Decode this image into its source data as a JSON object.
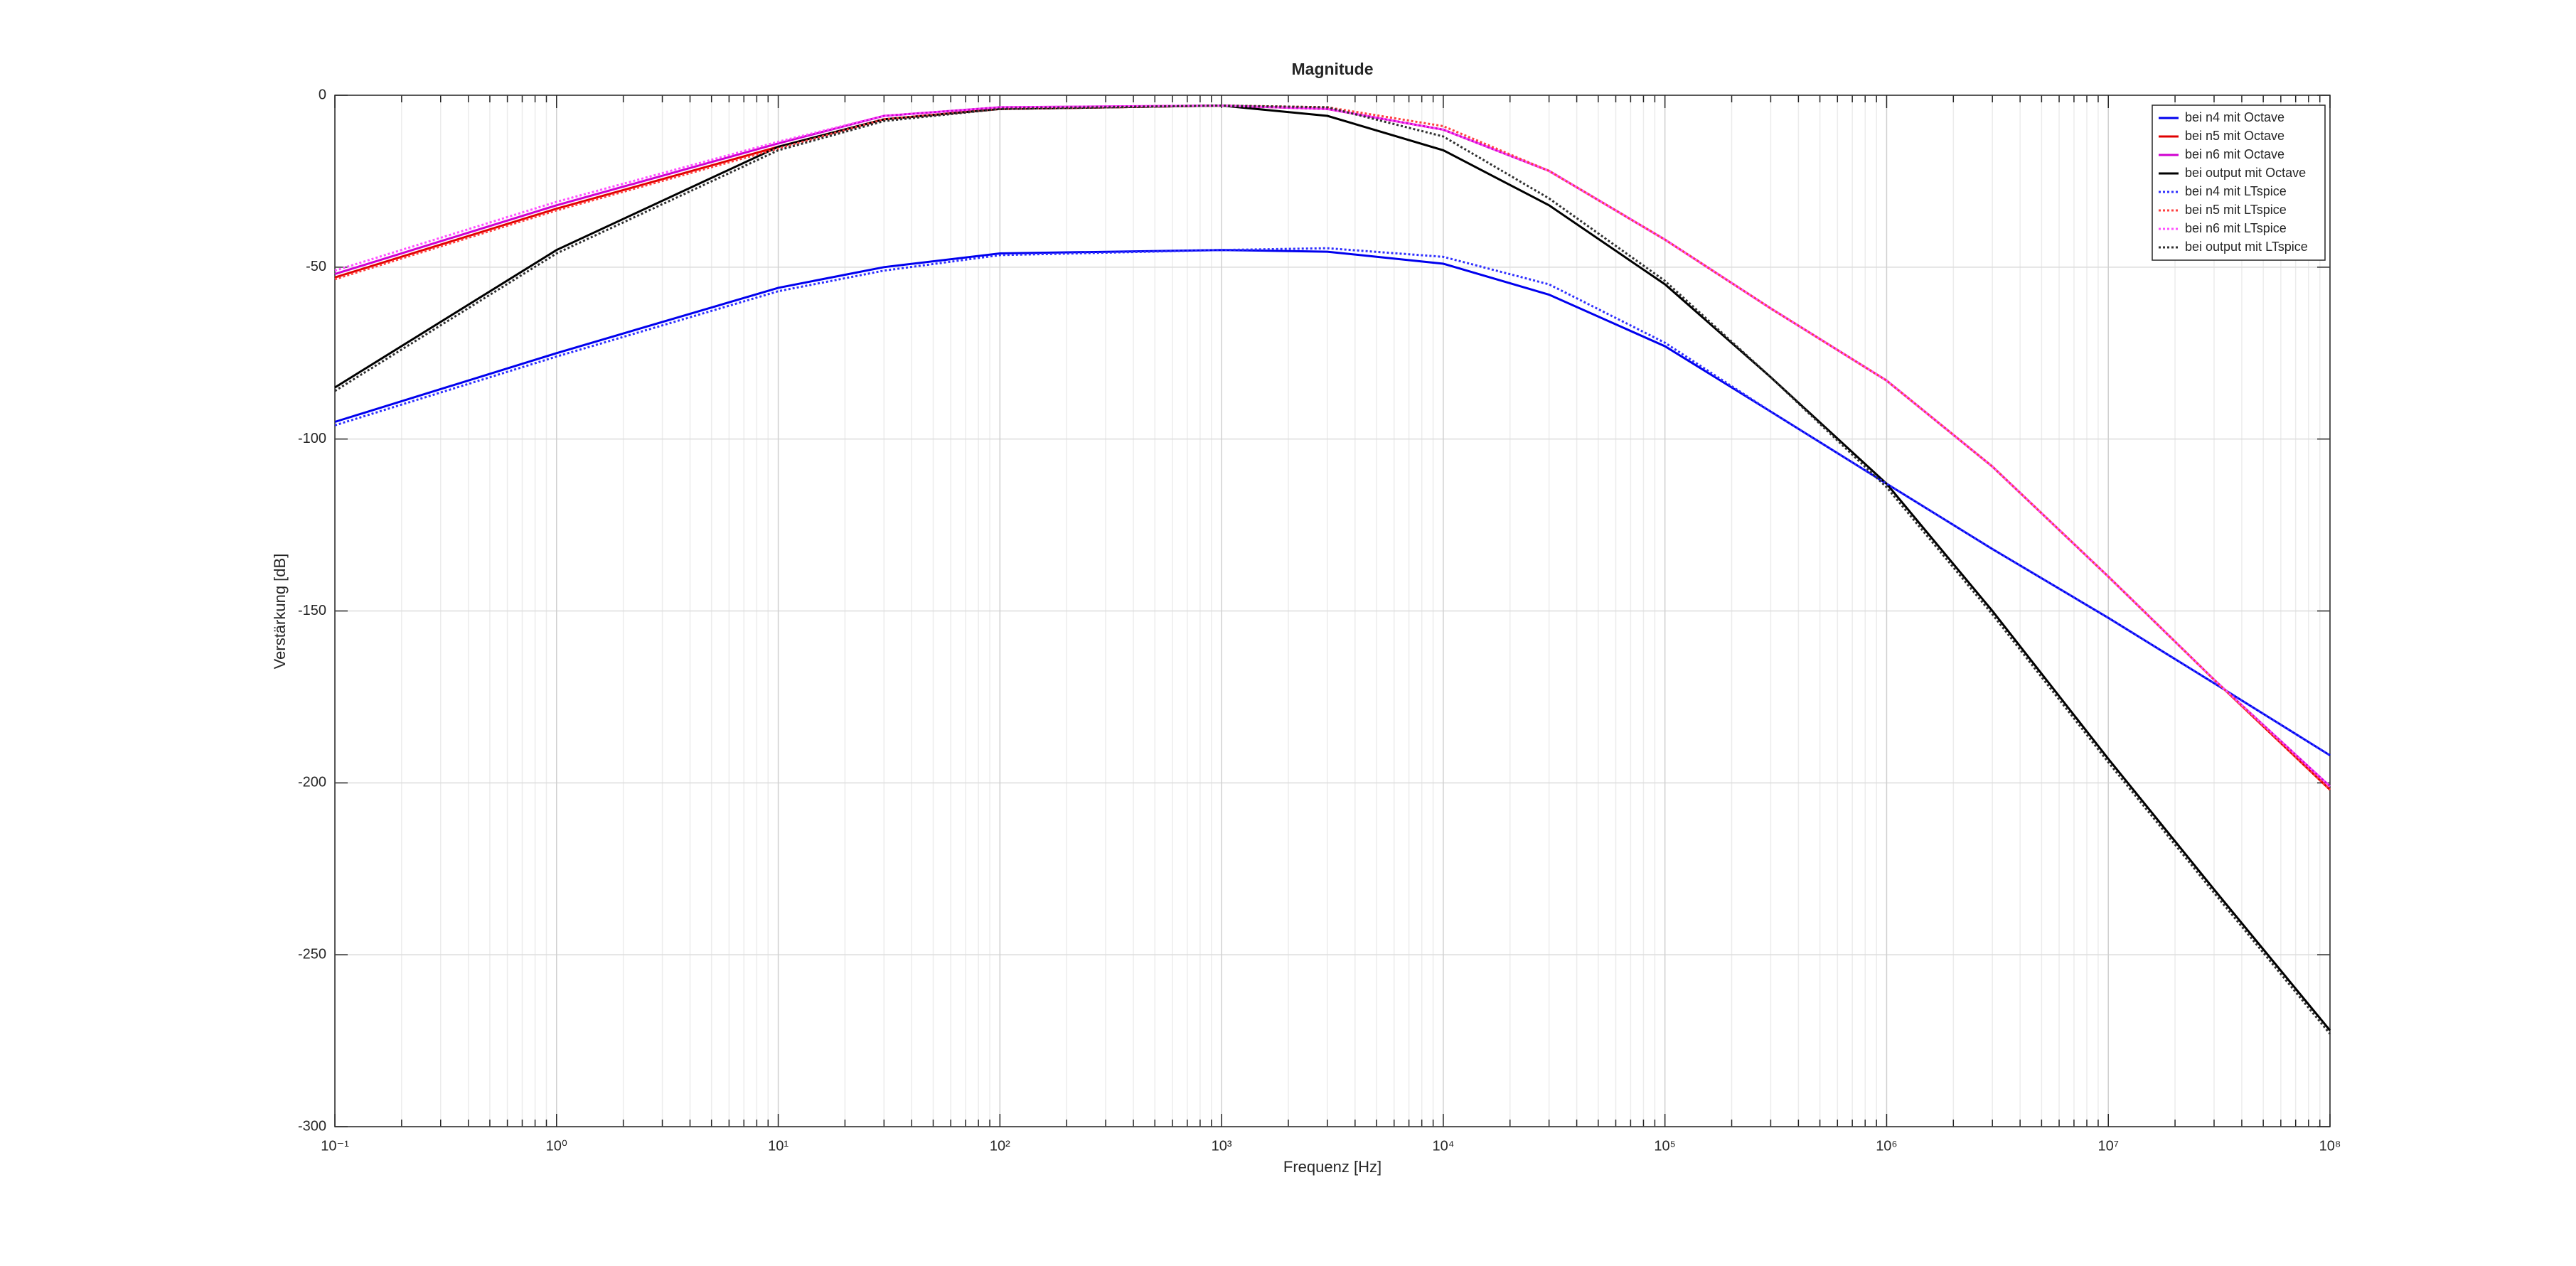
{
  "chart_data": {
    "type": "line",
    "title": "Magnitude",
    "x_label": "Frequenz [Hz]",
    "y_label": "Verstärkung [dB]",
    "xscale": "log",
    "grid": true,
    "minor_grid": true,
    "legend": "northeast",
    "xlim": [
      0.1,
      100000000
    ],
    "ylim": [
      -300,
      0
    ],
    "xticks": [
      {
        "value": 0.1,
        "label": "10⁻¹"
      },
      {
        "value": 1,
        "label": "10⁰"
      },
      {
        "value": 10,
        "label": "10¹"
      },
      {
        "value": 100,
        "label": "10²"
      },
      {
        "value": 1000,
        "label": "10³"
      },
      {
        "value": 10000,
        "label": "10⁴"
      },
      {
        "value": 100000,
        "label": "10⁵"
      },
      {
        "value": 1000000,
        "label": "10⁶"
      },
      {
        "value": 10000000,
        "label": "10⁷"
      },
      {
        "value": 100000000,
        "label": "10⁸"
      }
    ],
    "yticks": [
      -300,
      -250,
      -200,
      -150,
      -100,
      -50,
      0
    ],
    "x": [
      0.1,
      1,
      10,
      30,
      100,
      1000,
      3000,
      10000,
      30000,
      100000,
      300000,
      1000000,
      3000000,
      10000000,
      30000000,
      100000000
    ],
    "series": [
      {
        "name": "bei n4 mit Octave",
        "color": "#0000ee",
        "linestyle": "solid",
        "values": [
          -95,
          -75,
          -56,
          -50,
          -46,
          -45,
          -45.5,
          -49,
          -58,
          -73,
          -92,
          -113,
          -132,
          -152,
          -171,
          -192
        ]
      },
      {
        "name": "bei n5 mit Octave",
        "color": "#e00000",
        "linestyle": "solid",
        "values": [
          -53,
          -33,
          -15,
          -7,
          -4,
          -3,
          -4,
          -10,
          -22,
          -42,
          -62,
          -83,
          -108,
          -140,
          -170,
          -202
        ]
      },
      {
        "name": "bei n6 mit Octave",
        "color": "#d000d0",
        "linestyle": "solid",
        "values": [
          -52,
          -32,
          -14,
          -6,
          -3.5,
          -3,
          -4,
          -10,
          -22,
          -42,
          -62,
          -83,
          -108,
          -140,
          -170,
          -201
        ]
      },
      {
        "name": "bei output mit Octave",
        "color": "#000000",
        "linestyle": "solid",
        "values": [
          -85,
          -45,
          -15,
          -7,
          -4,
          -3,
          -6,
          -16,
          -32,
          -55,
          -82,
          -113,
          -150,
          -193,
          -231,
          -272
        ]
      },
      {
        "name": "bei n4 mit LTspice",
        "color": "#3030ff",
        "linestyle": "dotted",
        "values": [
          -96,
          -76,
          -57,
          -51,
          -46.5,
          -45,
          -44.5,
          -47,
          -55,
          -72,
          -92,
          -113,
          -132,
          -152,
          -171,
          -192
        ]
      },
      {
        "name": "bei n5 mit LTspice",
        "color": "#ff4040",
        "linestyle": "dotted",
        "values": [
          -53.5,
          -33.5,
          -15.5,
          -7,
          -4,
          -3,
          -3.5,
          -9,
          -22,
          -42,
          -62,
          -83,
          -108,
          -140,
          -170,
          -202
        ]
      },
      {
        "name": "bei n6 mit LTspice",
        "color": "#ff50ff",
        "linestyle": "dotted",
        "values": [
          -51,
          -31,
          -13.5,
          -6,
          -3.5,
          -3,
          -4,
          -10,
          -22,
          -42,
          -62,
          -83,
          -108,
          -140,
          -170,
          -201
        ]
      },
      {
        "name": "bei output mit LTspice",
        "color": "#303030",
        "linestyle": "dotted",
        "values": [
          -86,
          -46,
          -16,
          -7.5,
          -4,
          -3,
          -3.5,
          -12,
          -30,
          -54,
          -82,
          -114,
          -151,
          -194,
          -232,
          -273
        ]
      }
    ]
  }
}
